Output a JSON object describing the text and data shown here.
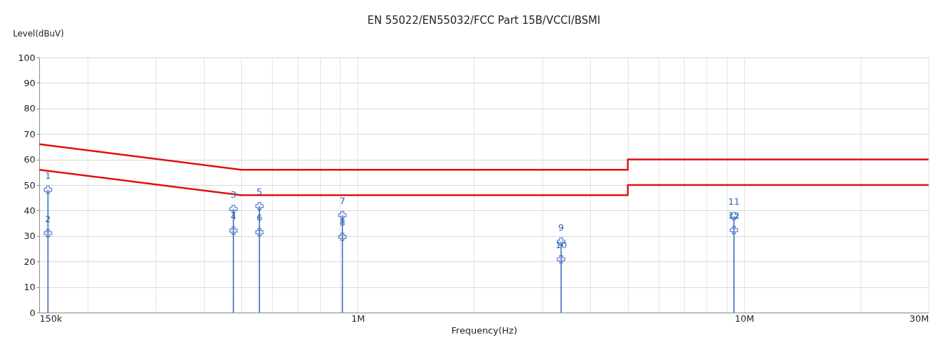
{
  "chart_data": {
    "type": "line",
    "title": "EN 55022/EN55032/FCC Part 15B/VCCI/BSMI",
    "xlabel": "Frequency(Hz)",
    "ylabel": "Level(dBuV)",
    "log": "x",
    "grid": true,
    "xlim": [
      150000,
      30000000
    ],
    "xticks": [
      {
        "value": 150000,
        "label": "150k"
      },
      {
        "value": 200000,
        "label": null
      },
      {
        "value": 300000,
        "label": null
      },
      {
        "value": 400000,
        "label": null
      },
      {
        "value": 500000,
        "label": null
      },
      {
        "value": 600000,
        "label": null
      },
      {
        "value": 700000,
        "label": null
      },
      {
        "value": 800000,
        "label": null
      },
      {
        "value": 900000,
        "label": null
      },
      {
        "value": 1000000,
        "label": "1M"
      },
      {
        "value": 2000000,
        "label": null
      },
      {
        "value": 3000000,
        "label": null
      },
      {
        "value": 4000000,
        "label": null
      },
      {
        "value": 5000000,
        "label": null
      },
      {
        "value": 6000000,
        "label": null
      },
      {
        "value": 7000000,
        "label": null
      },
      {
        "value": 8000000,
        "label": null
      },
      {
        "value": 9000000,
        "label": null
      },
      {
        "value": 10000000,
        "label": "10M"
      },
      {
        "value": 20000000,
        "label": null
      },
      {
        "value": 30000000,
        "label": "30M"
      }
    ],
    "ylim": [
      0,
      100
    ],
    "yticks": [
      0,
      10,
      20,
      30,
      40,
      50,
      60,
      70,
      80,
      90,
      100
    ],
    "series": [
      {
        "color": "#e01010",
        "x": [
          150000,
          500000,
          5000000,
          5000000,
          30000000
        ],
        "values": [
          66,
          56,
          56,
          60,
          60
        ]
      },
      {
        "color": "#e01010",
        "x": [
          150000,
          500000,
          5000000,
          5000000,
          30000000
        ],
        "values": [
          56,
          46,
          46,
          50,
          50
        ]
      },
      {
        "type": "lollipop",
        "color": "#2e62c0",
        "marker": "cross",
        "x": [
          158000,
          477000,
          557000,
          913000,
          3360000,
          9410000
        ],
        "values": [
          48.1,
          40.6,
          41.7,
          38.2,
          27.8,
          37.8
        ]
      },
      {
        "type": "scatter",
        "color": "#2e62c0",
        "marker": "cross",
        "x": [
          158000,
          477000,
          557000,
          913000,
          3360000,
          9410000
        ],
        "values": [
          31.1,
          32.1,
          31.5,
          29.7,
          20.9,
          32.3
        ]
      }
    ],
    "annotations": [
      {
        "text": "1",
        "x": 158000,
        "y": 48.1
      },
      {
        "text": "2",
        "x": 158000,
        "y": 31.1
      },
      {
        "text": "3",
        "x": 477000,
        "y": 40.6
      },
      {
        "text": "4",
        "x": 477000,
        "y": 32.1
      },
      {
        "text": "5",
        "x": 557000,
        "y": 41.7
      },
      {
        "text": "6",
        "x": 557000,
        "y": 31.5
      },
      {
        "text": "7",
        "x": 913000,
        "y": 38.2
      },
      {
        "text": "8",
        "x": 913000,
        "y": 29.7
      },
      {
        "text": "9",
        "x": 3360000,
        "y": 27.8
      },
      {
        "text": "10",
        "x": 3360000,
        "y": 20.9
      },
      {
        "text": "11",
        "x": 9410000,
        "y": 37.8
      },
      {
        "text": "12",
        "x": 9410000,
        "y": 32.3
      }
    ]
  }
}
